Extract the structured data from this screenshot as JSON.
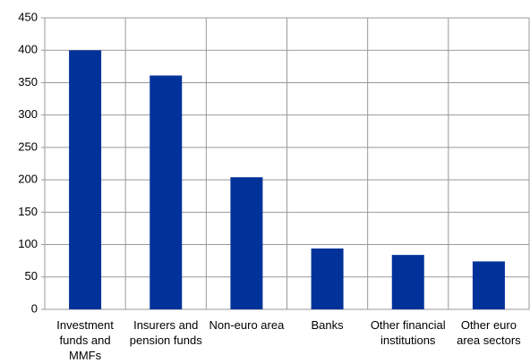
{
  "chart_data": {
    "type": "bar",
    "categories": [
      "Investment funds and MMFs",
      "Insurers and pension funds",
      "Non-euro area",
      "Banks",
      "Other financial institutions",
      "Other euro area sectors"
    ],
    "values": [
      400,
      361,
      204,
      94,
      84,
      74
    ],
    "color": "#003299",
    "ylim": [
      0,
      450
    ],
    "yticks": [
      0,
      50,
      100,
      150,
      200,
      250,
      300,
      350,
      400,
      450
    ],
    "grid": true
  }
}
